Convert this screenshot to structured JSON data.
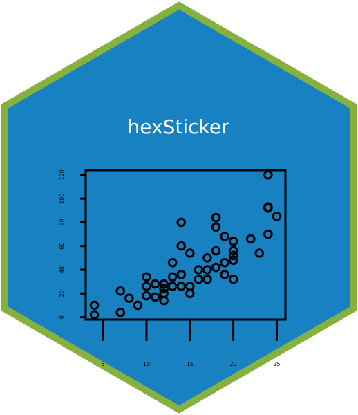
{
  "title": "hexSticker",
  "colors": {
    "hex_fill": "#1881C2",
    "hex_border": "#87B13F",
    "title": "#FFFFFF",
    "plot_ink": "#000000"
  },
  "chart_data": {
    "type": "scatter",
    "x_ticks": [
      "5",
      "10",
      "15",
      "20",
      "25"
    ],
    "y_ticks": [
      "0",
      "20",
      "40",
      "60",
      "80",
      "100",
      "120"
    ],
    "xlim": [
      3,
      26
    ],
    "ylim": [
      -2,
      124
    ],
    "grid": false,
    "points": [
      [
        4,
        2
      ],
      [
        4,
        10
      ],
      [
        7,
        4
      ],
      [
        7,
        22
      ],
      [
        8,
        16
      ],
      [
        9,
        10
      ],
      [
        10,
        18
      ],
      [
        10,
        26
      ],
      [
        10,
        34
      ],
      [
        11,
        17
      ],
      [
        11,
        28
      ],
      [
        12,
        14
      ],
      [
        12,
        20
      ],
      [
        12,
        24
      ],
      [
        12,
        28
      ],
      [
        13,
        26
      ],
      [
        13,
        34
      ],
      [
        13,
        46
      ],
      [
        14,
        26
      ],
      [
        14,
        36
      ],
      [
        14,
        60
      ],
      [
        14,
        80
      ],
      [
        15,
        20
      ],
      [
        15,
        26
      ],
      [
        15,
        54
      ],
      [
        16,
        32
      ],
      [
        16,
        40
      ],
      [
        17,
        32
      ],
      [
        17,
        40
      ],
      [
        17,
        50
      ],
      [
        18,
        42
      ],
      [
        18,
        56
      ],
      [
        18,
        76
      ],
      [
        18,
        84
      ],
      [
        19,
        36
      ],
      [
        19,
        46
      ],
      [
        19,
        68
      ],
      [
        20,
        32
      ],
      [
        20,
        48
      ],
      [
        20,
        52
      ],
      [
        20,
        56
      ],
      [
        20,
        64
      ],
      [
        22,
        66
      ],
      [
        23,
        54
      ],
      [
        24,
        70
      ],
      [
        24,
        92
      ],
      [
        24,
        93
      ],
      [
        24,
        120
      ],
      [
        25,
        85
      ]
    ]
  }
}
